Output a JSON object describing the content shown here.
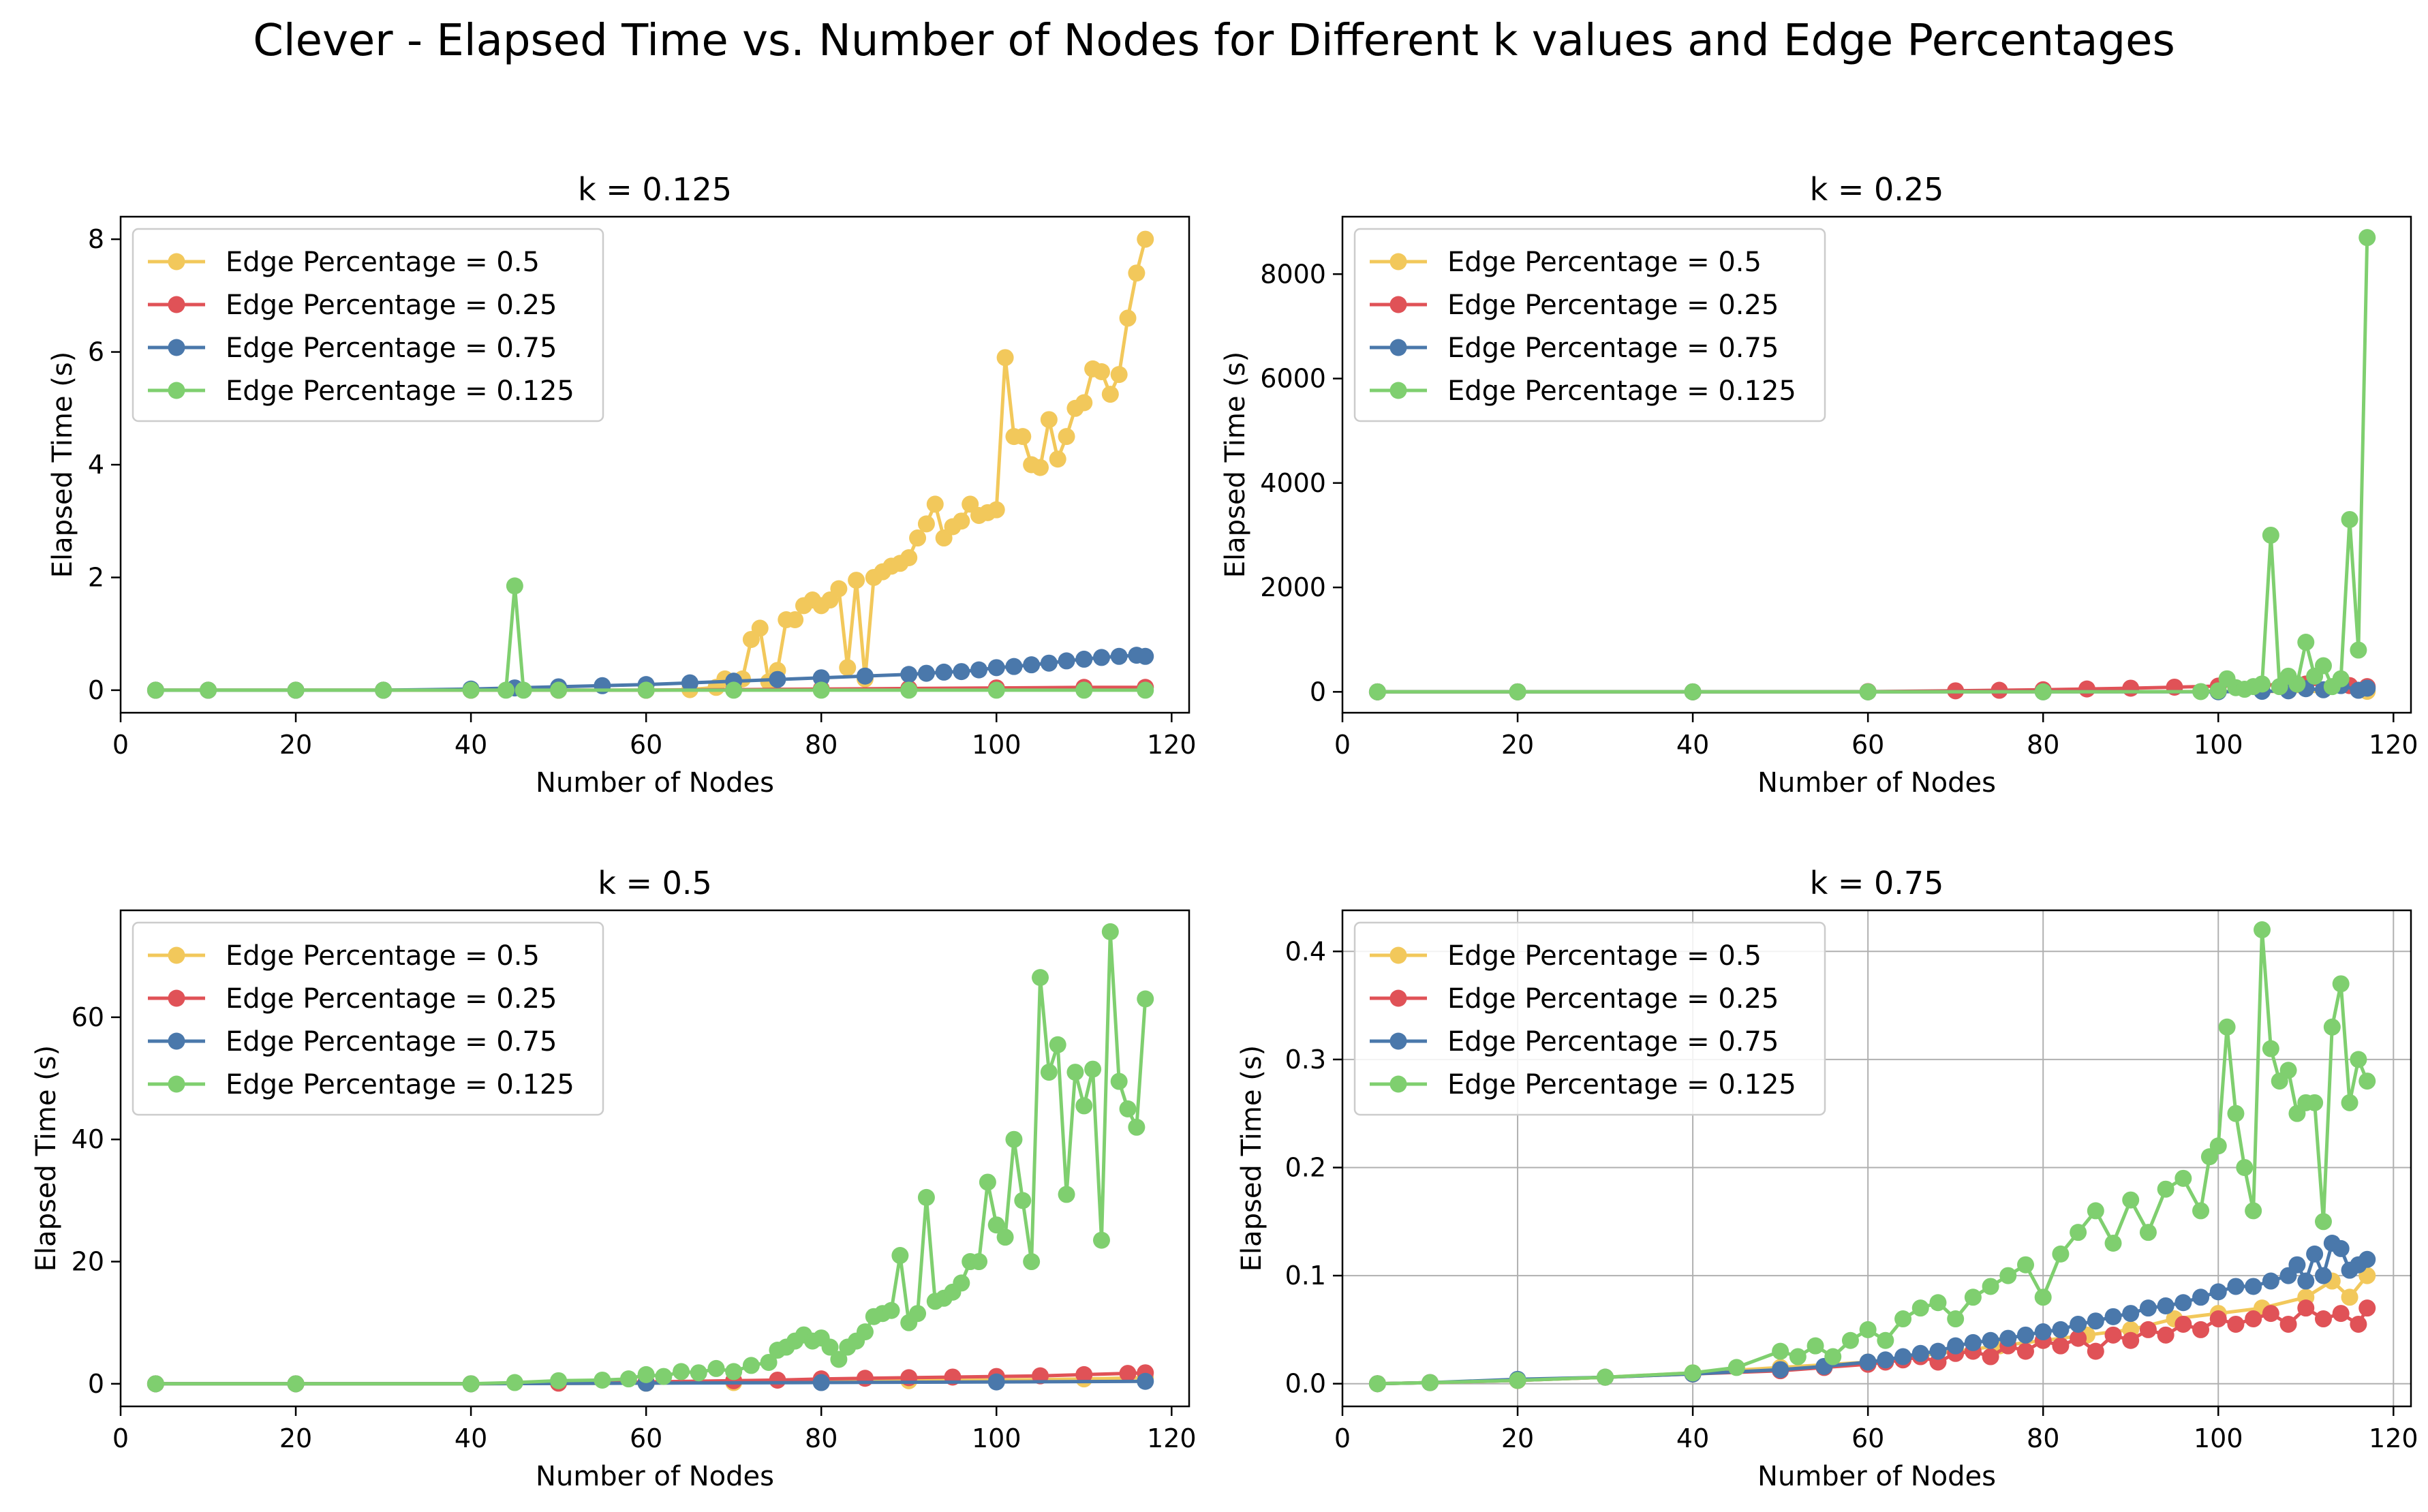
{
  "figure": {
    "title": "Clever - Elapsed Time vs. Number of Nodes for Different k values and Edge Percentages"
  },
  "chart_data": [
    {
      "type": "line",
      "title": "k = 0.125",
      "xlabel": "Number of Nodes",
      "ylabel": "Elapsed Time (s)",
      "xlim": [
        0,
        122
      ],
      "ylim": [
        -0.4,
        8.4
      ],
      "xticks": [
        0,
        20,
        40,
        60,
        80,
        100,
        120
      ],
      "yticks": [
        0,
        2,
        4,
        6,
        8
      ],
      "grid": false,
      "legend_position": "upper-left",
      "series": [
        {
          "name": "Edge Percentage = 0.5",
          "color": "#f2c85b",
          "x": [
            4,
            10,
            20,
            30,
            40,
            50,
            60,
            65,
            68,
            69,
            70,
            71,
            72,
            73,
            74,
            75,
            76,
            77,
            78,
            79,
            80,
            81,
            82,
            83,
            84,
            85,
            86,
            87,
            88,
            89,
            90,
            91,
            92,
            93,
            94,
            95,
            96,
            97,
            98,
            99,
            100,
            101,
            102,
            103,
            104,
            105,
            106,
            107,
            108,
            109,
            110,
            111,
            112,
            113,
            114,
            115,
            116,
            117
          ],
          "y": [
            0,
            0,
            0,
            0,
            0,
            0,
            0,
            0.01,
            0.05,
            0.2,
            0.1,
            0.2,
            0.9,
            1.1,
            0.15,
            0.35,
            1.25,
            1.25,
            1.5,
            1.6,
            1.5,
            1.6,
            1.8,
            0.4,
            1.95,
            0.2,
            2.0,
            2.1,
            2.2,
            2.25,
            2.35,
            2.7,
            2.95,
            3.3,
            2.7,
            2.9,
            3.0,
            3.3,
            3.1,
            3.15,
            3.2,
            5.9,
            4.5,
            4.5,
            4.0,
            3.95,
            4.8,
            4.1,
            4.5,
            5.0,
            5.1,
            5.7,
            5.65,
            5.25,
            5.6,
            6.6,
            7.4,
            8.0
          ]
        },
        {
          "name": "Edge Percentage = 0.25",
          "color": "#e05257",
          "x": [
            4,
            10,
            20,
            30,
            40,
            50,
            60,
            70,
            80,
            90,
            100,
            110,
            117
          ],
          "y": [
            0,
            0,
            0,
            0,
            0,
            0,
            0,
            0.01,
            0.02,
            0.03,
            0.04,
            0.05,
            0.05
          ]
        },
        {
          "name": "Edge Percentage = 0.75",
          "color": "#4a78ab",
          "x": [
            4,
            10,
            20,
            30,
            40,
            45,
            50,
            55,
            60,
            65,
            70,
            75,
            80,
            85,
            90,
            92,
            94,
            96,
            98,
            100,
            102,
            104,
            106,
            108,
            110,
            112,
            114,
            116,
            117
          ],
          "y": [
            0,
            0,
            0,
            0,
            0.02,
            0.04,
            0.06,
            0.08,
            0.1,
            0.13,
            0.16,
            0.19,
            0.22,
            0.25,
            0.28,
            0.3,
            0.32,
            0.33,
            0.36,
            0.4,
            0.42,
            0.45,
            0.48,
            0.52,
            0.55,
            0.58,
            0.6,
            0.62,
            0.6
          ]
        },
        {
          "name": "Edge Percentage = 0.125",
          "color": "#7fcf6f",
          "x": [
            4,
            10,
            20,
            30,
            40,
            44,
            45,
            46,
            50,
            60,
            70,
            80,
            90,
            100,
            110,
            117
          ],
          "y": [
            0,
            0,
            0,
            0,
            0,
            0,
            1.85,
            0,
            0,
            0,
            0,
            0,
            0,
            0,
            0,
            0
          ]
        }
      ]
    },
    {
      "type": "line",
      "title": "k = 0.25",
      "xlabel": "Number of Nodes",
      "ylabel": "Elapsed Time (s)",
      "xlim": [
        0,
        122
      ],
      "ylim": [
        -400,
        9100
      ],
      "xticks": [
        0,
        20,
        40,
        60,
        80,
        100,
        120
      ],
      "yticks": [
        0,
        2000,
        4000,
        6000,
        8000
      ],
      "grid": false,
      "legend_position": "upper-left",
      "series": [
        {
          "name": "Edge Percentage = 0.5",
          "color": "#f2c85b",
          "x": [
            4,
            20,
            40,
            60,
            80,
            100,
            117
          ],
          "y": [
            0,
            0,
            0,
            1,
            3,
            6,
            10
          ]
        },
        {
          "name": "Edge Percentage = 0.25",
          "color": "#e05257",
          "x": [
            4,
            20,
            40,
            60,
            70,
            75,
            80,
            85,
            90,
            95,
            100,
            105,
            110,
            115,
            117
          ],
          "y": [
            0,
            0,
            0,
            5,
            20,
            30,
            40,
            55,
            70,
            90,
            110,
            130,
            150,
            120,
            100
          ]
        },
        {
          "name": "Edge Percentage = 0.75",
          "color": "#4a78ab",
          "x": [
            4,
            20,
            40,
            60,
            80,
            100,
            105,
            108,
            110,
            112,
            114,
            116,
            117
          ],
          "y": [
            0,
            0,
            0,
            0,
            1,
            2,
            10,
            20,
            60,
            40,
            120,
            30,
            70
          ]
        },
        {
          "name": "Edge Percentage = 0.125",
          "color": "#7fcf6f",
          "x": [
            4,
            20,
            40,
            60,
            80,
            98,
            100,
            101,
            102,
            103,
            104,
            105,
            106,
            107,
            108,
            109,
            110,
            111,
            112,
            113,
            114,
            115,
            116,
            117
          ],
          "y": [
            0,
            0,
            0,
            0,
            1,
            5,
            20,
            250,
            80,
            50,
            100,
            150,
            3000,
            100,
            300,
            150,
            950,
            300,
            500,
            100,
            250,
            3300,
            800,
            8700
          ]
        }
      ]
    },
    {
      "type": "line",
      "title": "k = 0.5",
      "xlabel": "Number of Nodes",
      "ylabel": "Elapsed Time (s)",
      "xlim": [
        0,
        122
      ],
      "ylim": [
        -3.7,
        77.5
      ],
      "xticks": [
        0,
        20,
        40,
        60,
        80,
        100,
        120
      ],
      "yticks": [
        0,
        20,
        40,
        60
      ],
      "grid": false,
      "legend_position": "upper-left",
      "series": [
        {
          "name": "Edge Percentage = 0.5",
          "color": "#f2c85b",
          "x": [
            4,
            20,
            40,
            60,
            70,
            80,
            90,
            100,
            110,
            117
          ],
          "y": [
            0,
            0,
            0,
            0.1,
            0.2,
            0.4,
            0.5,
            0.6,
            0.8,
            1.0
          ]
        },
        {
          "name": "Edge Percentage = 0.25",
          "color": "#e05257",
          "x": [
            4,
            20,
            40,
            50,
            60,
            70,
            75,
            80,
            85,
            90,
            95,
            100,
            105,
            110,
            115,
            117
          ],
          "y": [
            0,
            0,
            0,
            0.1,
            0.3,
            0.5,
            0.6,
            0.8,
            0.9,
            1.0,
            1.1,
            1.2,
            1.3,
            1.5,
            1.7,
            1.8
          ]
        },
        {
          "name": "Edge Percentage = 0.75",
          "color": "#4a78ab",
          "x": [
            4,
            20,
            40,
            60,
            80,
            100,
            117
          ],
          "y": [
            0,
            0,
            0,
            0.1,
            0.2,
            0.3,
            0.4
          ]
        },
        {
          "name": "Edge Percentage = 0.125",
          "color": "#7fcf6f",
          "x": [
            4,
            20,
            40,
            45,
            50,
            55,
            58,
            60,
            62,
            64,
            66,
            68,
            70,
            72,
            74,
            75,
            76,
            77,
            78,
            79,
            80,
            81,
            82,
            83,
            84,
            85,
            86,
            87,
            88,
            89,
            90,
            91,
            92,
            93,
            94,
            95,
            96,
            97,
            98,
            99,
            100,
            101,
            102,
            103,
            104,
            105,
            106,
            107,
            108,
            109,
            110,
            111,
            112,
            113,
            114,
            115,
            116,
            117
          ],
          "y": [
            0,
            0,
            0,
            0.2,
            0.5,
            0.6,
            0.8,
            1.5,
            1.2,
            2.0,
            1.8,
            2.5,
            2.0,
            3.0,
            3.5,
            5.5,
            6.0,
            7.0,
            8.0,
            7.0,
            7.5,
            6.0,
            4.0,
            6.0,
            7.0,
            8.5,
            11.0,
            11.5,
            12.0,
            21.0,
            10.0,
            11.5,
            30.5,
            13.5,
            14.0,
            15.0,
            16.5,
            20.0,
            20.0,
            33.0,
            26.0,
            24.0,
            40.0,
            30.0,
            20.0,
            66.5,
            51.0,
            55.5,
            31.0,
            51.0,
            45.5,
            51.5,
            23.5,
            74.0,
            49.5,
            45.0,
            42.0,
            63.0
          ]
        }
      ]
    },
    {
      "type": "line",
      "title": "k = 0.75",
      "xlabel": "Number of Nodes",
      "ylabel": "Elapsed Time (s)",
      "xlim": [
        0,
        122
      ],
      "ylim": [
        -0.021,
        0.438
      ],
      "xticks": [
        0,
        20,
        40,
        60,
        80,
        100,
        120
      ],
      "yticks": [
        0.0,
        0.1,
        0.2,
        0.3,
        0.4
      ],
      "grid": true,
      "legend_position": "upper-left",
      "series": [
        {
          "name": "Edge Percentage = 0.5",
          "color": "#f2c85b",
          "x": [
            4,
            10,
            20,
            30,
            40,
            50,
            60,
            70,
            75,
            80,
            85,
            90,
            95,
            100,
            105,
            110,
            113,
            115,
            117
          ],
          "y": [
            0,
            0.001,
            0.003,
            0.006,
            0.01,
            0.015,
            0.02,
            0.03,
            0.035,
            0.04,
            0.045,
            0.05,
            0.06,
            0.065,
            0.07,
            0.08,
            0.095,
            0.08,
            0.1
          ]
        },
        {
          "name": "Edge Percentage = 0.25",
          "color": "#e05257",
          "x": [
            4,
            10,
            20,
            30,
            40,
            50,
            55,
            60,
            62,
            64,
            66,
            68,
            70,
            72,
            74,
            76,
            78,
            80,
            82,
            84,
            86,
            88,
            90,
            92,
            94,
            96,
            98,
            100,
            102,
            104,
            106,
            108,
            110,
            112,
            114,
            116,
            117
          ],
          "y": [
            0,
            0.001,
            0.003,
            0.006,
            0.009,
            0.012,
            0.015,
            0.018,
            0.02,
            0.022,
            0.025,
            0.02,
            0.028,
            0.03,
            0.025,
            0.035,
            0.03,
            0.04,
            0.035,
            0.042,
            0.03,
            0.045,
            0.04,
            0.05,
            0.045,
            0.055,
            0.05,
            0.06,
            0.055,
            0.06,
            0.065,
            0.055,
            0.07,
            0.06,
            0.065,
            0.055,
            0.07
          ]
        },
        {
          "name": "Edge Percentage = 0.75",
          "color": "#4a78ab",
          "x": [
            4,
            10,
            20,
            30,
            40,
            50,
            55,
            60,
            62,
            64,
            66,
            68,
            70,
            72,
            74,
            76,
            78,
            80,
            82,
            84,
            86,
            88,
            90,
            92,
            94,
            96,
            98,
            100,
            102,
            104,
            106,
            108,
            109,
            110,
            111,
            112,
            113,
            114,
            115,
            116,
            117
          ],
          "y": [
            0,
            0.001,
            0.004,
            0.006,
            0.009,
            0.013,
            0.016,
            0.02,
            0.022,
            0.025,
            0.028,
            0.03,
            0.035,
            0.038,
            0.04,
            0.042,
            0.045,
            0.048,
            0.05,
            0.055,
            0.058,
            0.062,
            0.065,
            0.07,
            0.072,
            0.075,
            0.08,
            0.085,
            0.09,
            0.09,
            0.095,
            0.1,
            0.11,
            0.095,
            0.12,
            0.1,
            0.13,
            0.125,
            0.105,
            0.11,
            0.115
          ]
        },
        {
          "name": "Edge Percentage = 0.125",
          "color": "#7fcf6f",
          "x": [
            4,
            10,
            20,
            30,
            40,
            45,
            50,
            52,
            54,
            56,
            58,
            60,
            62,
            64,
            66,
            68,
            70,
            72,
            74,
            76,
            78,
            80,
            82,
            84,
            86,
            88,
            90,
            92,
            94,
            96,
            98,
            99,
            100,
            101,
            102,
            103,
            104,
            105,
            106,
            107,
            108,
            109,
            110,
            111,
            112,
            113,
            114,
            115,
            116,
            117
          ],
          "y": [
            0,
            0.001,
            0.003,
            0.006,
            0.01,
            0.015,
            0.03,
            0.025,
            0.035,
            0.025,
            0.04,
            0.05,
            0.04,
            0.06,
            0.07,
            0.075,
            0.06,
            0.08,
            0.09,
            0.1,
            0.11,
            0.08,
            0.12,
            0.14,
            0.16,
            0.13,
            0.17,
            0.14,
            0.18,
            0.19,
            0.16,
            0.21,
            0.22,
            0.33,
            0.25,
            0.2,
            0.16,
            0.42,
            0.31,
            0.28,
            0.29,
            0.25,
            0.26,
            0.26,
            0.15,
            0.33,
            0.37,
            0.26,
            0.3,
            0.28
          ]
        }
      ]
    }
  ]
}
